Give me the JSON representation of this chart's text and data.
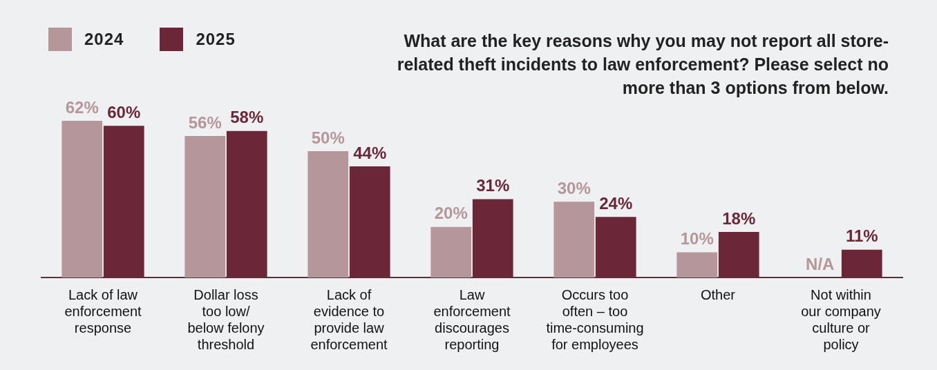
{
  "chart_data": {
    "type": "bar",
    "title": "What are the key reasons why you may not report all store-related theft incidents to law enforcement? Please select no more than 3 options from below.",
    "categories": [
      "Lack of law enforcement response",
      "Dollar loss too low/ below felony threshold",
      "Lack of evidence to provide law enforcement",
      "Law enforcement discourages reporting",
      "Occurs too often – too time-consuming for employees",
      "Other",
      "Not within our company culture or policy"
    ],
    "series": [
      {
        "name": "2024",
        "color": "#b5969b",
        "values": [
          62,
          56,
          50,
          20,
          30,
          10,
          null
        ],
        "value_labels": [
          "62%",
          "56%",
          "50%",
          "20%",
          "30%",
          "10%",
          "N/A"
        ]
      },
      {
        "name": "2025",
        "color": "#6b2737",
        "values": [
          60,
          58,
          44,
          31,
          24,
          18,
          11
        ],
        "value_labels": [
          "60%",
          "58%",
          "44%",
          "31%",
          "24%",
          "18%",
          "11%"
        ]
      }
    ],
    "legend": "top left"
  }
}
